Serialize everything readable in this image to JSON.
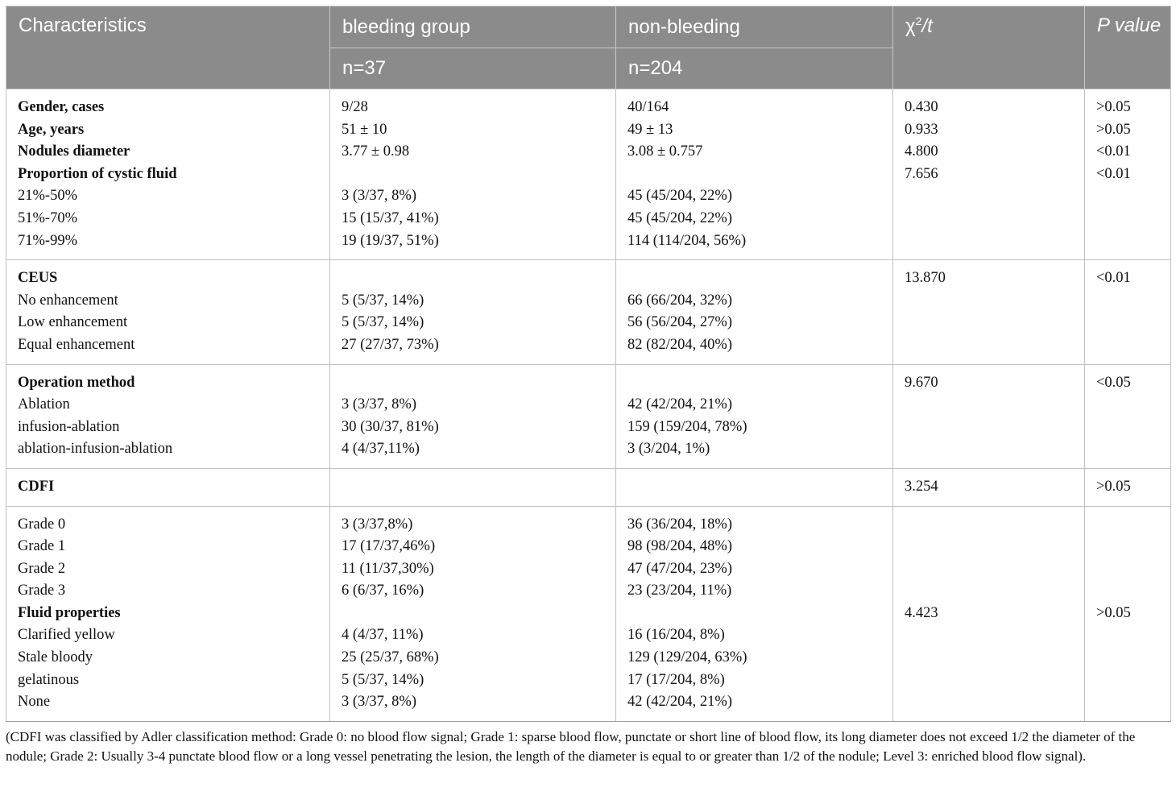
{
  "header": {
    "characteristics": "Characteristics",
    "bleeding_group": "bleeding group",
    "bleeding_n": "n=37",
    "non_bleeding": "non-bleeding",
    "non_bleeding_n": "n=204",
    "stat_chi": "χ",
    "stat_sup": "2",
    "stat_t": "/t",
    "p_value": "P value"
  },
  "rows": [
    [
      "Gender, cases",
      "9/28",
      "40/164",
      "0.430",
      ">0.05"
    ],
    [
      "Age, years",
      "51 ± 10",
      "49 ± 13",
      "0.933",
      ">0.05"
    ],
    [
      "Nodules diameter",
      "3.77 ± 0.98",
      "3.08 ± 0.757",
      "4.800",
      "<0.01"
    ],
    [
      "Proportion of cystic fluid",
      "",
      "",
      "7.656",
      "<0.01"
    ],
    [
      "21%-50%",
      "3 (3/37, 8%)",
      "45 (45/204, 22%)",
      "",
      ""
    ],
    [
      "51%-70%",
      "15 (15/37, 41%)",
      "45 (45/204, 22%)",
      "",
      ""
    ],
    [
      "71%-99%",
      "19 (19/37, 51%)",
      "114 (114/204, 56%)",
      "",
      ""
    ],
    [
      "CEUS",
      "",
      "",
      "13.870",
      "<0.01"
    ],
    [
      "No enhancement",
      "5 (5/37, 14%)",
      "66 (66/204, 32%)",
      "",
      ""
    ],
    [
      "Low enhancement",
      "5 (5/37, 14%)",
      "56 (56/204, 27%)",
      "",
      ""
    ],
    [
      "Equal enhancement",
      "27 (27/37, 73%)",
      "82 (82/204, 40%)",
      "",
      ""
    ],
    [
      "Operation method",
      "",
      "",
      "9.670",
      "<0.05"
    ],
    [
      "Ablation",
      "3 (3/37, 8%)",
      "42 (42/204, 21%)",
      "",
      ""
    ],
    [
      "infusion-ablation",
      "30 (30/37, 81%)",
      "159 (159/204, 78%)",
      "",
      ""
    ],
    [
      "ablation-infusion-ablation",
      "4 (4/37,11%)",
      "3 (3/204, 1%)",
      "",
      ""
    ],
    [
      "CDFI",
      "",
      "",
      "3.254",
      ">0.05"
    ],
    [
      "Grade 0",
      "3 (3/37,8%)",
      "36 (36/204, 18%)",
      "",
      ""
    ],
    [
      "Grade 1",
      "17 (17/37,46%)",
      "98 (98/204, 48%)",
      "",
      ""
    ],
    [
      "Grade 2",
      "11 (11/37,30%)",
      "47 (47/204, 23%)",
      "",
      ""
    ],
    [
      "Grade 3",
      "6 (6/37, 16%)",
      "23 (23/204, 11%)",
      "",
      ""
    ],
    [
      "Fluid properties",
      "",
      "",
      "4.423",
      ">0.05"
    ],
    [
      "Clarified yellow",
      "4 (4/37, 11%)",
      "16 (16/204, 8%)",
      "",
      ""
    ],
    [
      "Stale bloody",
      "25 (25/37, 68%)",
      "129 (129/204, 63%)",
      "",
      ""
    ],
    [
      "gelatinous",
      "5 (5/37, 14%)",
      "17 (17/204, 8%)",
      "",
      ""
    ],
    [
      "None",
      "3 (3/37, 8%)",
      "42 (42/204, 21%)",
      "",
      ""
    ]
  ],
  "footnote": "(CDFI was classified by Adler classification method: Grade 0: no blood flow signal; Grade 1: sparse blood flow, punctate or short line of blood flow, its long diameter does not exceed 1/2 the diameter of the nodule; Grade 2: Usually 3-4 punctate blood flow or a long vessel penetrating the lesion, the length of the diameter is equal to or greater than 1/2 of the nodule; Level 3: enriched blood flow signal)."
}
